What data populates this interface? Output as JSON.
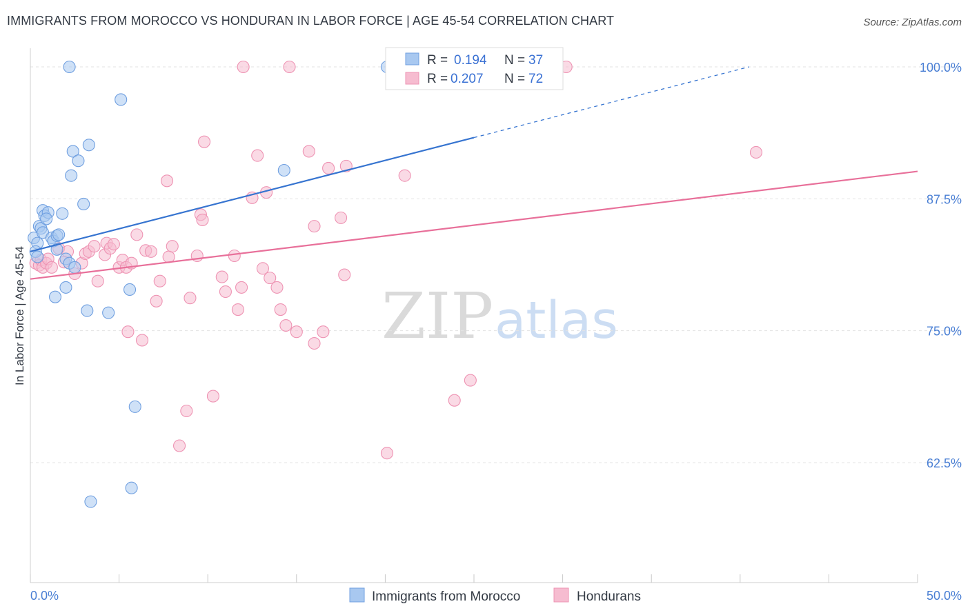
{
  "title": "IMMIGRANTS FROM MOROCCO VS HONDURAN IN LABOR FORCE | AGE 45-54 CORRELATION CHART",
  "source": "Source: ZipAtlas.com",
  "watermark": {
    "zip": "ZIP",
    "atlas": "atlas"
  },
  "colors": {
    "blue_fill": "#a8c8f0",
    "blue_stroke": "#6f9fe0",
    "blue_line": "#3674d0",
    "pink_fill": "#f6bcd0",
    "pink_stroke": "#ee93b3",
    "pink_line": "#e8709a",
    "grid": "#e3e3e3",
    "tick_text": "#4a7fd4"
  },
  "legend": {
    "rows": [
      {
        "r_label": "R = ",
        "r_value": "0.194",
        "n_label": "N = ",
        "n_value": "37"
      },
      {
        "r_label": "R = ",
        "r_value": "0.207",
        "n_label": "N = ",
        "n_value": "72"
      }
    ]
  },
  "chart_data": {
    "type": "scatter",
    "xlabel": "",
    "ylabel": "In Labor Force | Age 45-54",
    "xlim": [
      0,
      50
    ],
    "ylim": [
      50,
      101
    ],
    "x_tick_labels": [
      "0.0%",
      "50.0%"
    ],
    "y_ticks": [
      62.5,
      75.0,
      87.5,
      100.0
    ],
    "y_tick_labels": [
      "62.5%",
      "75.0%",
      "87.5%",
      "100.0%"
    ],
    "series": [
      {
        "name": "Immigrants from Morocco",
        "color": "blue",
        "trend": {
          "x0": 0,
          "y0": 82.5,
          "x1": 25,
          "y1": 93.3,
          "dash_x1": 40.5,
          "dash_y1": 100.0
        },
        "points": [
          [
            0.2,
            83.8
          ],
          [
            0.4,
            83.3
          ],
          [
            0.3,
            82.5
          ],
          [
            0.5,
            84.9
          ],
          [
            0.6,
            84.7
          ],
          [
            0.7,
            84.3
          ],
          [
            0.7,
            86.4
          ],
          [
            0.8,
            85.9
          ],
          [
            1.0,
            86.2
          ],
          [
            0.9,
            85.6
          ],
          [
            1.2,
            83.8
          ],
          [
            1.3,
            83.5
          ],
          [
            1.5,
            84.0
          ],
          [
            1.6,
            84.1
          ],
          [
            1.5,
            82.7
          ],
          [
            1.8,
            86.1
          ],
          [
            2.0,
            81.8
          ],
          [
            1.4,
            78.2
          ],
          [
            2.0,
            79.1
          ],
          [
            2.2,
            81.4
          ],
          [
            2.5,
            81.0
          ],
          [
            2.3,
            89.7
          ],
          [
            2.4,
            92.0
          ],
          [
            2.7,
            91.1
          ],
          [
            3.0,
            87.0
          ],
          [
            3.3,
            92.6
          ],
          [
            2.2,
            100.0
          ],
          [
            5.1,
            96.9
          ],
          [
            3.2,
            76.9
          ],
          [
            4.4,
            76.7
          ],
          [
            5.6,
            78.9
          ],
          [
            5.9,
            67.8
          ],
          [
            5.7,
            60.1
          ],
          [
            3.4,
            58.8
          ],
          [
            14.3,
            90.2
          ],
          [
            20.1,
            100.0
          ],
          [
            0.4,
            82.0
          ]
        ]
      },
      {
        "name": "Hondurans",
        "color": "pink",
        "trend": {
          "x0": 0,
          "y0": 79.9,
          "x1": 50,
          "y1": 90.1
        },
        "points": [
          [
            0.3,
            81.4
          ],
          [
            0.5,
            81.2
          ],
          [
            0.6,
            81.7
          ],
          [
            0.7,
            81.0
          ],
          [
            0.9,
            81.4
          ],
          [
            1.0,
            81.8
          ],
          [
            1.2,
            81.0
          ],
          [
            1.6,
            82.8
          ],
          [
            1.9,
            81.5
          ],
          [
            2.1,
            82.5
          ],
          [
            2.5,
            80.4
          ],
          [
            2.9,
            81.4
          ],
          [
            3.1,
            82.3
          ],
          [
            3.3,
            82.5
          ],
          [
            3.6,
            83.0
          ],
          [
            3.8,
            79.7
          ],
          [
            4.2,
            82.2
          ],
          [
            4.3,
            83.3
          ],
          [
            4.5,
            82.8
          ],
          [
            4.7,
            83.2
          ],
          [
            5.0,
            81.0
          ],
          [
            5.2,
            81.7
          ],
          [
            5.4,
            81.0
          ],
          [
            5.7,
            81.4
          ],
          [
            6.0,
            84.1
          ],
          [
            6.5,
            82.6
          ],
          [
            6.8,
            82.5
          ],
          [
            7.1,
            77.8
          ],
          [
            7.3,
            79.7
          ],
          [
            7.7,
            89.2
          ],
          [
            7.8,
            82.0
          ],
          [
            8.0,
            83.0
          ],
          [
            8.8,
            67.4
          ],
          [
            8.4,
            64.1
          ],
          [
            9.0,
            78.1
          ],
          [
            9.4,
            82.1
          ],
          [
            9.6,
            86.0
          ],
          [
            9.7,
            85.5
          ],
          [
            9.8,
            92.9
          ],
          [
            10.3,
            68.8
          ],
          [
            10.8,
            80.1
          ],
          [
            11.0,
            78.7
          ],
          [
            11.5,
            82.1
          ],
          [
            11.7,
            77.0
          ],
          [
            11.9,
            79.1
          ],
          [
            12.0,
            100.0
          ],
          [
            12.5,
            87.6
          ],
          [
            12.8,
            91.6
          ],
          [
            13.1,
            80.9
          ],
          [
            13.3,
            88.1
          ],
          [
            13.5,
            80.0
          ],
          [
            13.9,
            79.1
          ],
          [
            14.1,
            77.0
          ],
          [
            14.4,
            75.5
          ],
          [
            14.6,
            100.0
          ],
          [
            15.0,
            74.9
          ],
          [
            15.7,
            92.0
          ],
          [
            16.0,
            73.8
          ],
          [
            16.0,
            84.9
          ],
          [
            16.5,
            74.9
          ],
          [
            16.8,
            90.4
          ],
          [
            17.5,
            85.7
          ],
          [
            17.7,
            80.3
          ],
          [
            17.8,
            90.6
          ],
          [
            5.5,
            74.9
          ],
          [
            6.3,
            74.1
          ],
          [
            20.1,
            63.4
          ],
          [
            21.1,
            89.7
          ],
          [
            23.9,
            68.4
          ],
          [
            24.8,
            70.3
          ],
          [
            30.2,
            100.0
          ],
          [
            40.9,
            91.9
          ]
        ]
      }
    ]
  }
}
